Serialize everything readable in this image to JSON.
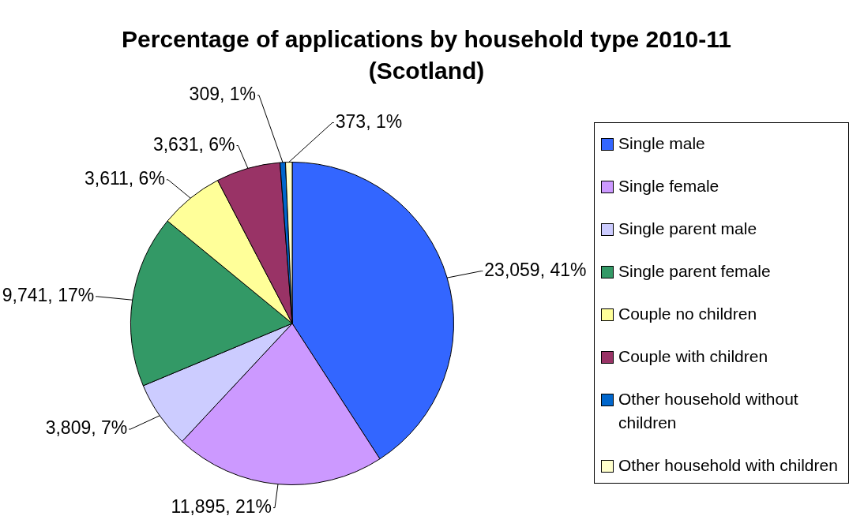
{
  "chart_data": {
    "type": "pie",
    "title": "Percentage of applications by household type 2010-11 (Scotland)",
    "categories": [
      "Single male",
      "Single female",
      "Single parent male",
      "Single parent female",
      "Couple no children",
      "Couple with children",
      "Other household without children",
      "Other household with children"
    ],
    "values": [
      23059,
      11895,
      3809,
      9741,
      3611,
      3631,
      309,
      373
    ],
    "colors": [
      "#3366ff",
      "#cc99ff",
      "#ccccff",
      "#339966",
      "#ffff99",
      "#993366",
      "#0066cc",
      "#ffffcc"
    ],
    "value_labels": [
      "23,059, 41%",
      "11,895, 21%",
      "3,809, 7%",
      "9,741, 17%",
      "3,611, 6%",
      "3,631, 6%",
      "309, 1%",
      "373, 1%"
    ],
    "legend": "right"
  }
}
